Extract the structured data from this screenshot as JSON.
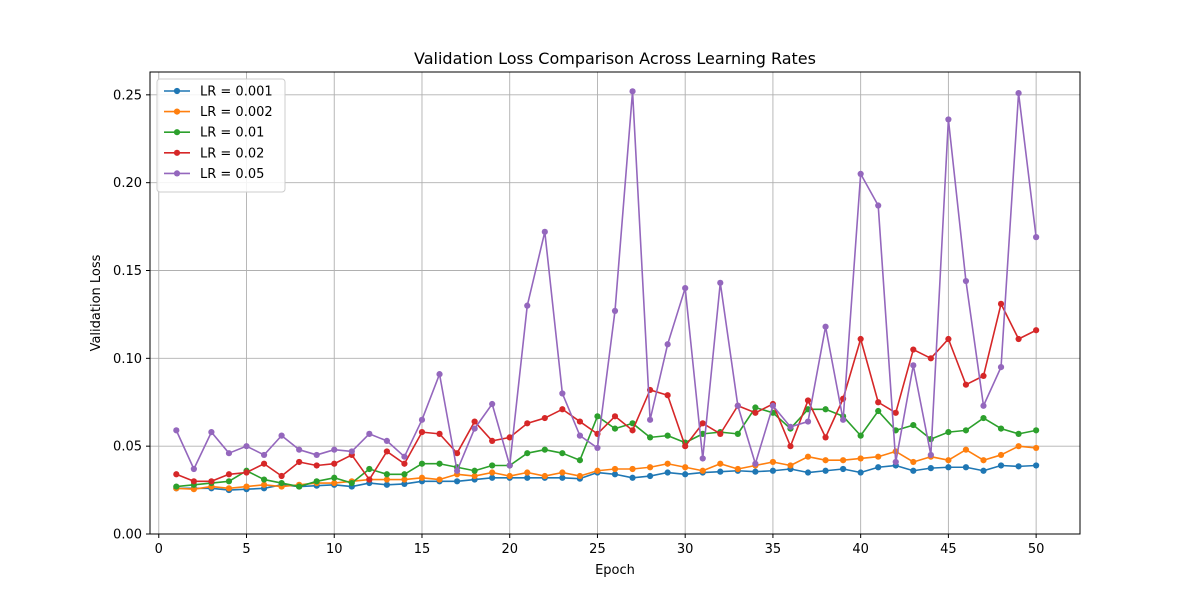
{
  "chart_data": {
    "type": "line",
    "title": "Validation Loss Comparison Across Learning Rates",
    "xlabel": "Epoch",
    "ylabel": "Validation Loss",
    "xlim": [
      -0.5,
      52.5
    ],
    "ylim": [
      0.0,
      0.263
    ],
    "xticks": [
      0,
      5,
      10,
      15,
      20,
      25,
      30,
      35,
      40,
      45,
      50
    ],
    "xtick_labels": [
      "0",
      "5",
      "10",
      "15",
      "20",
      "25",
      "30",
      "35",
      "40",
      "45",
      "50"
    ],
    "yticks": [
      0.0,
      0.05,
      0.1,
      0.15,
      0.2,
      0.25
    ],
    "ytick_labels": [
      "0.00",
      "0.05",
      "0.10",
      "0.15",
      "0.20",
      "0.25"
    ],
    "grid": true,
    "legend_position": "upper-left",
    "x": [
      1,
      2,
      3,
      4,
      5,
      6,
      7,
      8,
      9,
      10,
      11,
      12,
      13,
      14,
      15,
      16,
      17,
      18,
      19,
      20,
      21,
      22,
      23,
      24,
      25,
      26,
      27,
      28,
      29,
      30,
      31,
      32,
      33,
      34,
      35,
      36,
      37,
      38,
      39,
      40,
      41,
      42,
      43,
      44,
      45,
      46,
      47,
      48,
      49,
      50
    ],
    "series": [
      {
        "name": "LR = 0.001",
        "color": "#1f77b4",
        "values": [
          0.026,
          0.026,
          0.026,
          0.025,
          0.0255,
          0.026,
          0.028,
          0.027,
          0.0275,
          0.028,
          0.027,
          0.029,
          0.028,
          0.0285,
          0.03,
          0.03,
          0.03,
          0.031,
          0.032,
          0.032,
          0.032,
          0.032,
          0.032,
          0.0315,
          0.035,
          0.034,
          0.032,
          0.033,
          0.035,
          0.034,
          0.035,
          0.0355,
          0.036,
          0.0355,
          0.036,
          0.037,
          0.035,
          0.036,
          0.037,
          0.035,
          0.038,
          0.039,
          0.036,
          0.0375,
          0.038,
          0.038,
          0.036,
          0.039,
          0.0385,
          0.039
        ]
      },
      {
        "name": "LR = 0.002",
        "color": "#ff7f0e",
        "values": [
          0.026,
          0.0255,
          0.027,
          0.026,
          0.027,
          0.028,
          0.027,
          0.028,
          0.029,
          0.029,
          0.03,
          0.031,
          0.031,
          0.031,
          0.032,
          0.031,
          0.034,
          0.033,
          0.035,
          0.033,
          0.035,
          0.033,
          0.035,
          0.033,
          0.036,
          0.037,
          0.037,
          0.038,
          0.04,
          0.038,
          0.036,
          0.04,
          0.037,
          0.039,
          0.041,
          0.039,
          0.044,
          0.042,
          0.042,
          0.043,
          0.044,
          0.047,
          0.041,
          0.044,
          0.042,
          0.048,
          0.042,
          0.045,
          0.05,
          0.049
        ]
      },
      {
        "name": "LR = 0.01",
        "color": "#2ca02c",
        "values": [
          0.027,
          0.028,
          0.029,
          0.03,
          0.036,
          0.031,
          0.029,
          0.027,
          0.03,
          0.032,
          0.029,
          0.037,
          0.034,
          0.034,
          0.04,
          0.04,
          0.038,
          0.036,
          0.039,
          0.039,
          0.046,
          0.048,
          0.046,
          0.042,
          0.067,
          0.06,
          0.063,
          0.055,
          0.056,
          0.052,
          0.057,
          0.058,
          0.057,
          0.072,
          0.069,
          0.06,
          0.071,
          0.071,
          0.067,
          0.056,
          0.07,
          0.059,
          0.062,
          0.054,
          0.058,
          0.059,
          0.066,
          0.06,
          0.057,
          0.059
        ]
      },
      {
        "name": "LR = 0.02",
        "color": "#d62728",
        "values": [
          0.034,
          0.03,
          0.03,
          0.034,
          0.035,
          0.04,
          0.033,
          0.041,
          0.039,
          0.04,
          0.045,
          0.031,
          0.047,
          0.04,
          0.058,
          0.057,
          0.046,
          0.064,
          0.053,
          0.055,
          0.063,
          0.066,
          0.071,
          0.064,
          0.057,
          0.067,
          0.059,
          0.082,
          0.079,
          0.05,
          0.063,
          0.057,
          0.073,
          0.069,
          0.074,
          0.05,
          0.076,
          0.055,
          0.077,
          0.111,
          0.075,
          0.069,
          0.105,
          0.1,
          0.111,
          0.085,
          0.09,
          0.131,
          0.111,
          0.116
        ]
      },
      {
        "name": "LR = 0.05",
        "color": "#9467bd",
        "values": [
          0.059,
          0.037,
          0.058,
          0.046,
          0.05,
          0.045,
          0.056,
          0.048,
          0.045,
          0.048,
          0.047,
          0.057,
          0.053,
          0.044,
          0.065,
          0.091,
          0.036,
          0.06,
          0.074,
          0.039,
          0.13,
          0.172,
          0.08,
          0.056,
          0.049,
          0.127,
          0.252,
          0.065,
          0.108,
          0.14,
          0.043,
          0.143,
          0.073,
          0.04,
          0.073,
          0.061,
          0.064,
          0.118,
          0.065,
          0.205,
          0.187,
          0.041,
          0.096,
          0.045,
          0.236,
          0.144,
          0.073,
          0.095,
          0.251,
          0.169
        ]
      }
    ]
  }
}
